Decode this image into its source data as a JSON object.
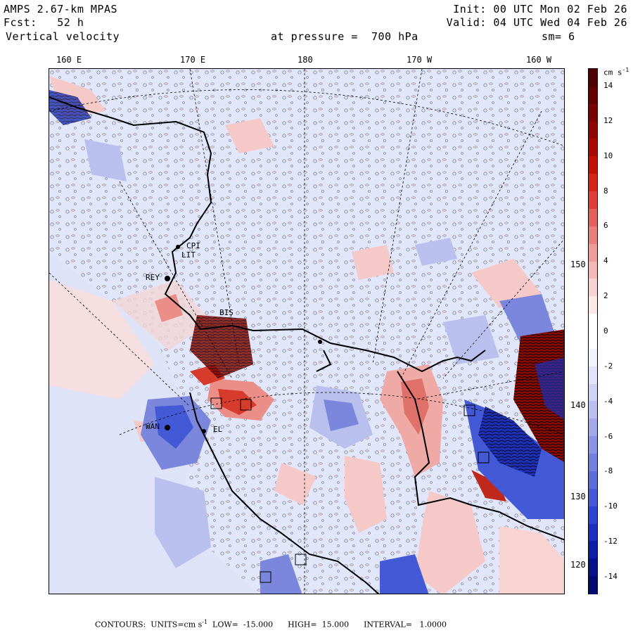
{
  "header": {
    "model": "AMPS 2.67-km MPAS",
    "forecast": "Fcst:   52 h",
    "field": "Vertical velocity",
    "init": "Init: 00 UTC Mon 02 Feb 26",
    "valid": "Valid: 04 UTC Wed 04 Feb 26",
    "pressure": "at pressure =  700 hPa",
    "smoothing": "sm= 6"
  },
  "map": {
    "lon_labels": [
      "160 E",
      "170 E",
      "180",
      "170 W",
      "160 W"
    ],
    "lat_labels": [
      "150 W",
      "140 W",
      "130 W",
      "120 W"
    ],
    "stations": [
      "CPI",
      "LIT",
      "REY",
      "WAN",
      "BIS",
      "EL"
    ],
    "colors": {
      "background_low": "#e2e6fa",
      "positive_light": "#f5c9c7",
      "positive_mid": "#ec8e88",
      "positive_strong": "#d73b2c",
      "negative_light": "#b9c0ee",
      "negative_mid": "#7b87dc",
      "negative_strong": "#1c2fb5"
    }
  },
  "colorbar": {
    "units_label": "cm s",
    "units_exp": "-1",
    "tick_labels": [
      "14",
      "12",
      "10",
      "8",
      "6",
      "4",
      "2",
      "0",
      "-2",
      "-4",
      "-6",
      "-8",
      "-10",
      "-12",
      "-14"
    ],
    "low": -15,
    "high": 15,
    "interval": 1,
    "colors": [
      "#020a72",
      "#06128c",
      "#0c1ea6",
      "#1a31c0",
      "#2b45cf",
      "#4359d6",
      "#5b6ddb",
      "#7280e0",
      "#8a95e5",
      "#a2aaeb",
      "#b9c0f0",
      "#ced3f5",
      "#e0e3f9",
      "#f2f3fc",
      "#ffffff",
      "#ffffff",
      "#fce8e7",
      "#f8d2d0",
      "#f3b8b5",
      "#ee9c98",
      "#e97f7a",
      "#e4605a",
      "#dd3f37",
      "#d42418",
      "#c21206",
      "#a80a02",
      "#900500",
      "#7a0300",
      "#640100",
      "#500000"
    ]
  },
  "footer": {
    "text": "CONTOURS:  UNITS=cm s",
    "units_exp": "-1",
    "rest": "  LOW=  -15.000      HIGH=  15.000      INTERVAL=   1.0000"
  }
}
